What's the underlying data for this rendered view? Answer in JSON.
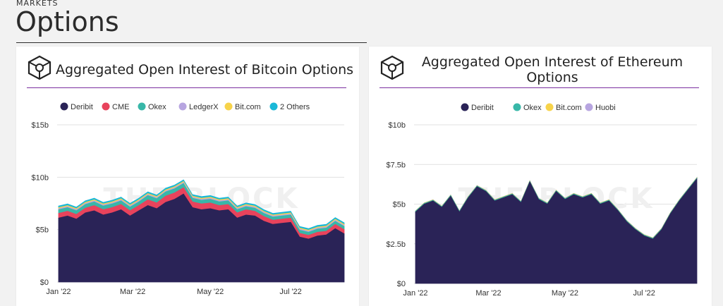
{
  "header": {
    "section_label": "MARKETS",
    "title": "Options"
  },
  "colors": {
    "background": "#f2f2f2",
    "Deribit": "#2a2357",
    "CME": "#e8435c",
    "Okex": "#38b7a8",
    "LedgerX": "#b7a5e0",
    "Bit.com": "#f7d34a",
    "2 Others": "#1ab8d8",
    "Huobi": "#b7a5e0",
    "title_rule": "#7b2fa0"
  },
  "watermark": "THE BLOCK",
  "chart_data": [
    {
      "type": "area",
      "title": "Aggregated Open Interest of Bitcoin Options",
      "stacked": true,
      "legend_position": "top",
      "legend": [
        "Deribit",
        "CME",
        "Okex",
        "LedgerX",
        "Bit.com",
        "2 Others"
      ],
      "y_ticks": [
        "$0",
        "$5b",
        "$10b",
        "$15b"
      ],
      "x_ticks": [
        "Jan '22",
        "Mar '22",
        "May '22",
        "Jul '22"
      ],
      "ylim": [
        0,
        15
      ],
      "grid": true,
      "x": [
        "2022-01-01",
        "2022-01-08",
        "2022-01-15",
        "2022-01-22",
        "2022-01-29",
        "2022-02-05",
        "2022-02-12",
        "2022-02-19",
        "2022-02-26",
        "2022-03-05",
        "2022-03-12",
        "2022-03-19",
        "2022-03-26",
        "2022-04-02",
        "2022-04-09",
        "2022-04-16",
        "2022-04-23",
        "2022-04-30",
        "2022-05-07",
        "2022-05-14",
        "2022-05-21",
        "2022-05-28",
        "2022-06-04",
        "2022-06-11",
        "2022-06-18",
        "2022-06-25",
        "2022-07-02",
        "2022-07-09",
        "2022-07-16",
        "2022-07-23",
        "2022-07-30",
        "2022-08-06",
        "2022-08-13"
      ],
      "series": [
        {
          "name": "Deribit",
          "values": [
            6.1,
            6.3,
            6.0,
            6.6,
            6.8,
            6.4,
            6.6,
            6.9,
            6.3,
            6.8,
            7.3,
            7.0,
            7.6,
            7.9,
            8.4,
            7.1,
            6.9,
            7.0,
            6.8,
            6.9,
            6.1,
            6.4,
            6.3,
            5.8,
            5.5,
            5.6,
            5.7,
            4.3,
            4.1,
            4.4,
            4.5,
            5.1,
            4.6
          ]
        },
        {
          "name": "CME",
          "values": [
            0.45,
            0.45,
            0.45,
            0.45,
            0.5,
            0.5,
            0.5,
            0.5,
            0.5,
            0.5,
            0.55,
            0.55,
            0.6,
            0.6,
            0.6,
            0.55,
            0.55,
            0.55,
            0.5,
            0.5,
            0.5,
            0.5,
            0.45,
            0.45,
            0.4,
            0.4,
            0.4,
            0.35,
            0.35,
            0.35,
            0.35,
            0.4,
            0.4
          ]
        },
        {
          "name": "Okex",
          "values": [
            0.35,
            0.35,
            0.35,
            0.35,
            0.35,
            0.35,
            0.35,
            0.35,
            0.35,
            0.35,
            0.4,
            0.4,
            0.4,
            0.4,
            0.4,
            0.35,
            0.35,
            0.35,
            0.35,
            0.35,
            0.3,
            0.3,
            0.3,
            0.3,
            0.3,
            0.3,
            0.3,
            0.3,
            0.3,
            0.3,
            0.3,
            0.3,
            0.3
          ]
        },
        {
          "name": "LedgerX",
          "values": [
            0.1,
            0.1,
            0.1,
            0.1,
            0.1,
            0.1,
            0.1,
            0.1,
            0.1,
            0.1,
            0.1,
            0.1,
            0.1,
            0.1,
            0.1,
            0.1,
            0.1,
            0.1,
            0.1,
            0.1,
            0.1,
            0.1,
            0.1,
            0.1,
            0.1,
            0.1,
            0.1,
            0.1,
            0.1,
            0.1,
            0.1,
            0.1,
            0.1
          ]
        },
        {
          "name": "Bit.com",
          "values": [
            0.1,
            0.1,
            0.1,
            0.1,
            0.1,
            0.1,
            0.1,
            0.1,
            0.1,
            0.1,
            0.1,
            0.1,
            0.1,
            0.1,
            0.1,
            0.1,
            0.1,
            0.1,
            0.1,
            0.1,
            0.1,
            0.1,
            0.1,
            0.1,
            0.1,
            0.1,
            0.1,
            0.1,
            0.1,
            0.1,
            0.1,
            0.1,
            0.1
          ]
        },
        {
          "name": "2 Others",
          "values": [
            0.15,
            0.15,
            0.15,
            0.15,
            0.15,
            0.15,
            0.15,
            0.15,
            0.15,
            0.15,
            0.15,
            0.15,
            0.15,
            0.15,
            0.15,
            0.15,
            0.15,
            0.15,
            0.15,
            0.15,
            0.15,
            0.15,
            0.15,
            0.15,
            0.15,
            0.15,
            0.15,
            0.15,
            0.15,
            0.15,
            0.15,
            0.15,
            0.15
          ]
        }
      ]
    },
    {
      "type": "area",
      "title": "Aggregated Open Interest of Ethereum Options",
      "stacked": true,
      "legend_position": "top",
      "legend": [
        "Deribit",
        "Okex",
        "Bit.com",
        "Huobi"
      ],
      "y_ticks": [
        "$0",
        "$2.5b",
        "$5b",
        "$7.5b",
        "$10b"
      ],
      "x_ticks": [
        "Jan '22",
        "Mar '22",
        "May '22",
        "Jul '22"
      ],
      "ylim": [
        0,
        10
      ],
      "grid": true,
      "x": [
        "2022-01-01",
        "2022-01-08",
        "2022-01-15",
        "2022-01-22",
        "2022-01-29",
        "2022-02-05",
        "2022-02-12",
        "2022-02-19",
        "2022-02-26",
        "2022-03-05",
        "2022-03-12",
        "2022-03-19",
        "2022-03-26",
        "2022-04-02",
        "2022-04-09",
        "2022-04-16",
        "2022-04-23",
        "2022-04-30",
        "2022-05-07",
        "2022-05-14",
        "2022-05-21",
        "2022-05-28",
        "2022-06-04",
        "2022-06-11",
        "2022-06-18",
        "2022-06-25",
        "2022-07-02",
        "2022-07-09",
        "2022-07-16",
        "2022-07-23",
        "2022-07-30",
        "2022-08-06",
        "2022-08-13"
      ],
      "series": [
        {
          "name": "Deribit",
          "values": [
            4.5,
            5.0,
            5.2,
            4.8,
            5.5,
            4.5,
            5.4,
            6.1,
            5.8,
            5.2,
            5.4,
            5.6,
            5.1,
            6.4,
            5.3,
            5.0,
            5.8,
            5.3,
            5.6,
            5.4,
            5.6,
            5.0,
            5.2,
            4.6,
            3.9,
            3.4,
            3.0,
            2.8,
            3.4,
            4.4,
            5.2,
            5.9,
            6.6
          ]
        },
        {
          "name": "Okex",
          "values": [
            0.05,
            0.05,
            0.05,
            0.05,
            0.05,
            0.05,
            0.05,
            0.05,
            0.05,
            0.05,
            0.05,
            0.05,
            0.05,
            0.05,
            0.05,
            0.05,
            0.05,
            0.05,
            0.05,
            0.05,
            0.05,
            0.05,
            0.05,
            0.05,
            0.05,
            0.05,
            0.05,
            0.05,
            0.05,
            0.05,
            0.05,
            0.05,
            0.05
          ]
        },
        {
          "name": "Bit.com",
          "values": [
            0.02,
            0.02,
            0.02,
            0.02,
            0.02,
            0.02,
            0.02,
            0.02,
            0.02,
            0.02,
            0.02,
            0.02,
            0.02,
            0.02,
            0.02,
            0.02,
            0.02,
            0.02,
            0.02,
            0.02,
            0.02,
            0.02,
            0.02,
            0.02,
            0.02,
            0.02,
            0.02,
            0.02,
            0.02,
            0.02,
            0.02,
            0.02,
            0.02
          ]
        },
        {
          "name": "Huobi",
          "values": [
            0.01,
            0.01,
            0.01,
            0.01,
            0.01,
            0.01,
            0.01,
            0.01,
            0.01,
            0.01,
            0.01,
            0.01,
            0.01,
            0.01,
            0.01,
            0.01,
            0.01,
            0.01,
            0.01,
            0.01,
            0.01,
            0.01,
            0.01,
            0.01,
            0.01,
            0.01,
            0.01,
            0.01,
            0.01,
            0.01,
            0.01,
            0.01,
            0.01
          ]
        }
      ]
    }
  ]
}
